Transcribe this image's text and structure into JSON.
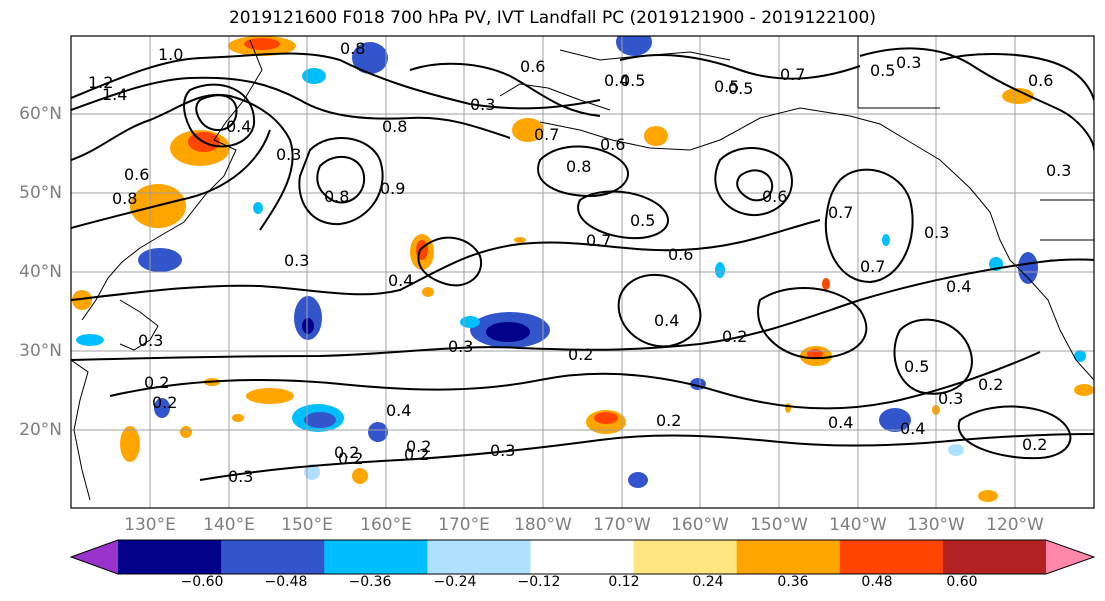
{
  "title": "2019121600 F018 700 hPa PV, IVT Landfall PC (2019121900 - 2019122100)",
  "lat_labels": [
    "60°N",
    "50°N",
    "40°N",
    "30°N",
    "20°N"
  ],
  "lon_labels": [
    "130°E",
    "140°E",
    "150°E",
    "160°E",
    "170°E",
    "180°W",
    "170°W",
    "160°W",
    "150°W",
    "140°W",
    "130°W",
    "120°W"
  ],
  "colorbar": {
    "colors": [
      "#9933cc",
      "#00008b",
      "#3355cc",
      "#00bfff",
      "#b0e0ff",
      "#ffffff",
      "#ffe680",
      "#ffa500",
      "#ff4500",
      "#b22222",
      "#ff88aa"
    ],
    "tick_labels": [
      "−0.60",
      "−0.48",
      "−0.36",
      "−0.24",
      "−0.12",
      "0.12",
      "0.24",
      "0.36",
      "0.48",
      "0.60"
    ]
  },
  "contour_labels": [
    "1.0",
    "1.2",
    "1.4",
    "0.8",
    "0.6",
    "0.4",
    "0.5",
    "0.7",
    "0.3",
    "0.2",
    "0.9"
  ],
  "contour_label_instances": [
    "1.0",
    "1.2",
    "1.4",
    "0.8",
    "0.6",
    "0.4",
    "0.4",
    "0.5",
    "0.7",
    "0.7",
    "0.8",
    "0.6",
    "0.6",
    "0.3",
    "0.4",
    "0.5",
    "0.6",
    "0.7",
    "0.8",
    "0.5",
    "0.7",
    "0.3",
    "0.4",
    "0.4",
    "0.3",
    "0.2",
    "0.2",
    "0.3",
    "0.4",
    "0.5",
    "0.2",
    "0.3",
    "0.2",
    "0.2",
    "0.3",
    "0.2",
    "0.3",
    "0.2",
    "0.4",
    "0.4",
    "0.2",
    "0.2",
    "0.3",
    "0.3",
    "0.5",
    "0.3",
    "0.2",
    "0.2",
    "0.6",
    "0.5",
    "0.9",
    "0.8",
    "0.3",
    "0.7",
    "0.6",
    "0.8"
  ]
}
